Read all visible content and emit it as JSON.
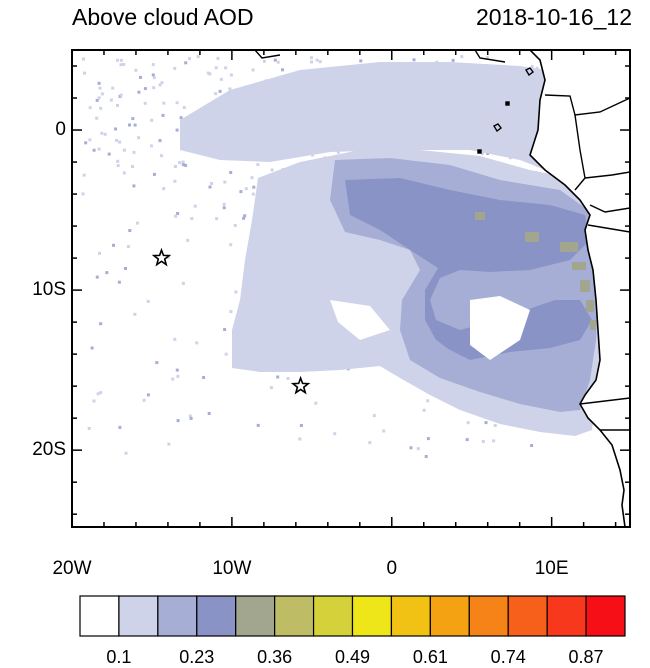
{
  "title": "Above cloud AOD",
  "timestamp": "2018-10-16_12",
  "axes": {
    "x_ticks": [
      {
        "value": -20,
        "label": "20W"
      },
      {
        "value": -10,
        "label": "10W"
      },
      {
        "value": 0,
        "label": "0"
      },
      {
        "value": 10,
        "label": "10E"
      }
    ],
    "y_ticks": [
      {
        "value": 0,
        "label": "0"
      },
      {
        "value": -10,
        "label": "10S"
      },
      {
        "value": -20,
        "label": "20S"
      }
    ]
  },
  "colorbar": {
    "colors": [
      "#ffffff",
      "#cfd3ea",
      "#a6aed6",
      "#8a93c5",
      "#a3a68f",
      "#bebd66",
      "#d5d13a",
      "#efe61a",
      "#f1c213",
      "#f4a212",
      "#f58317",
      "#f7601a",
      "#f8381c",
      "#f70f17"
    ],
    "labels": [
      "0.1",
      "0.23",
      "0.36",
      "0.49",
      "0.61",
      "0.74",
      "0.87"
    ]
  },
  "stations": [
    {
      "lon": -14.4,
      "lat": -8.0
    },
    {
      "lon": -5.7,
      "lat": -16.0
    }
  ],
  "map_colors": {
    "land": "#ffffff",
    "coast": "#000000"
  }
}
